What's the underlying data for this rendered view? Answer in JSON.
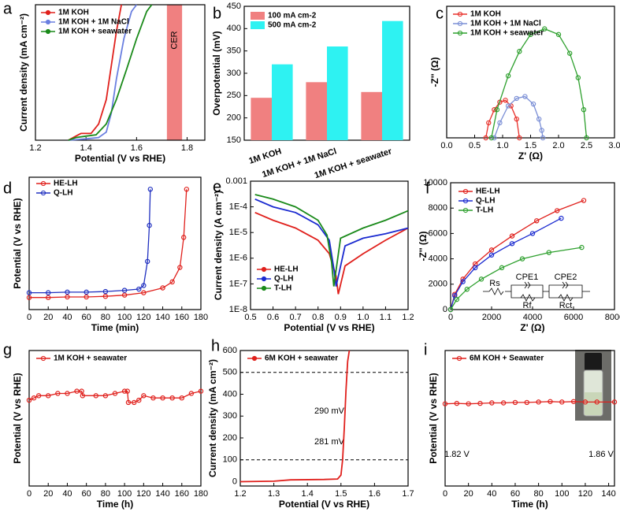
{
  "chart_data": [
    {
      "type": "line",
      "panel": "a",
      "xlabel": "Potential (V vs RHE)",
      "ylabel": "Current density (mA cm⁻²)",
      "xlim": [
        1.2,
        1.87
      ],
      "xticks": [
        1.2,
        1.4,
        1.6,
        1.8
      ],
      "ylim": [
        0,
        100
      ],
      "legend": "upper left",
      "shaded_region": {
        "x": [
          1.72,
          1.78
        ],
        "label": "CER",
        "color": "#f08080"
      },
      "series": [
        {
          "name": "1M KOH",
          "color": "#e0201c",
          "x": [
            1.33,
            1.36,
            1.38,
            1.42,
            1.45,
            1.48,
            1.5,
            1.52,
            1.54
          ],
          "values": [
            0,
            3,
            5,
            5,
            12,
            30,
            55,
            80,
            100
          ]
        },
        {
          "name": "1M KOH + 1M NaCl",
          "color": "#6a7fe0",
          "x": [
            1.33,
            1.4,
            1.45,
            1.48,
            1.5,
            1.52,
            1.55,
            1.58,
            1.6
          ],
          "values": [
            0,
            1,
            2,
            6,
            20,
            45,
            75,
            95,
            100
          ]
        },
        {
          "name": "1M KOH + seawater",
          "color": "#1a8a1a",
          "x": [
            1.33,
            1.36,
            1.4,
            1.44,
            1.48,
            1.52,
            1.56,
            1.6,
            1.64,
            1.66
          ],
          "values": [
            0,
            2,
            3,
            4,
            12,
            30,
            52,
            75,
            95,
            100
          ]
        }
      ]
    },
    {
      "type": "bar",
      "panel": "b",
      "ylabel": "Overpotential (mV)",
      "categories": [
        "1M KOH",
        "1M KOH + 1M NaCl",
        "1M KOH + seawater"
      ],
      "ylim": [
        150,
        450
      ],
      "yticks": [
        150,
        200,
        250,
        300,
        350,
        400,
        450
      ],
      "legend": "upper left",
      "series": [
        {
          "name": "100 mA cm-2",
          "color": "#f08080",
          "values": [
            245,
            280,
            258
          ]
        },
        {
          "name": "500 mA cm-2",
          "color": "#2ef2f2",
          "values": [
            320,
            360,
            417
          ]
        }
      ]
    },
    {
      "type": "line",
      "panel": "c",
      "xlabel": "Z' (Ω)",
      "ylabel": "-Z'' (Ω)",
      "markers": true,
      "xlim": [
        0,
        3.0
      ],
      "xticks": [
        {
          "value": 0,
          "label": "0.0"
        },
        0.5,
        {
          "value": 1,
          "label": "1.0"
        },
        1.5,
        {
          "value": 2,
          "label": "2.0"
        },
        2.5,
        {
          "value": 3,
          "label": "3.0"
        }
      ],
      "ylim": [
        0,
        0.7
      ],
      "legend": "upper left",
      "series": [
        {
          "name": "1M KOH",
          "color": "#e8302a",
          "x": [
            0.7,
            0.75,
            0.85,
            0.95,
            1.05,
            1.15,
            1.25,
            1.3
          ],
          "values": [
            0,
            0.08,
            0.15,
            0.19,
            0.2,
            0.17,
            0.1,
            0
          ]
        },
        {
          "name": "1M KOH + 1M NaCl",
          "color": "#7b8fd6",
          "x": [
            0.85,
            0.95,
            1.1,
            1.25,
            1.4,
            1.55,
            1.65,
            1.7,
            1.72
          ],
          "values": [
            0,
            0.08,
            0.17,
            0.21,
            0.22,
            0.18,
            0.1,
            0.04,
            0
          ]
        },
        {
          "name": "1M KOH + seawater",
          "color": "#2ea02e",
          "x": [
            0.8,
            0.9,
            1.1,
            1.3,
            1.5,
            1.75,
            2.0,
            2.2,
            2.35,
            2.45,
            2.5
          ],
          "values": [
            0,
            0.15,
            0.33,
            0.46,
            0.55,
            0.58,
            0.55,
            0.45,
            0.32,
            0.15,
            0
          ]
        }
      ]
    },
    {
      "type": "line",
      "panel": "d",
      "xlabel": "Time (min)",
      "ylabel": "Potential (V vs RHE)",
      "markers": true,
      "xlim": [
        0,
        180
      ],
      "xticks": [
        0,
        20,
        40,
        60,
        80,
        100,
        120,
        140,
        160,
        180
      ],
      "ylim": [
        1,
        12
      ],
      "legend": "upper left",
      "series": [
        {
          "name": "HE-LH",
          "color": "#e0201c",
          "x": [
            0,
            20,
            40,
            60,
            80,
            100,
            120,
            140,
            150,
            158,
            162,
            165
          ],
          "values": [
            2.0,
            2.0,
            2.05,
            2.05,
            2.1,
            2.2,
            2.4,
            2.8,
            3.3,
            4.5,
            7,
            11
          ]
        },
        {
          "name": "Q-LH",
          "color": "#2030c0",
          "x": [
            0,
            20,
            40,
            60,
            80,
            100,
            115,
            120,
            124,
            126,
            127
          ],
          "values": [
            2.4,
            2.4,
            2.45,
            2.45,
            2.5,
            2.6,
            2.7,
            3.0,
            5,
            8,
            11
          ]
        }
      ]
    },
    {
      "type": "line",
      "panel": "e",
      "xlabel": "Potential (V vs RHE)",
      "ylabel": "Current density (A cm⁻²)",
      "log_y": true,
      "xlim": [
        0.5,
        1.2
      ],
      "xticks": [
        0.5,
        0.6,
        0.7,
        0.8,
        0.9,
        {
          "value": 1,
          "label": "1.0"
        },
        1.1,
        1.2
      ],
      "ylim": [
        1e-08,
        0.001
      ],
      "yticks": [
        {
          "value": 1e-08,
          "label": "1E-8"
        },
        {
          "value": 1e-07,
          "label": "1E-7"
        },
        {
          "value": 1e-06,
          "label": "1E-6"
        },
        {
          "value": 1e-05,
          "label": "1E-5"
        },
        {
          "value": 0.0001,
          "label": "1E-4"
        },
        0.001
      ],
      "legend": "lower left",
      "series": [
        {
          "name": "HE-LH",
          "color": "#e0201c",
          "x": [
            0.52,
            0.6,
            0.7,
            0.8,
            0.85,
            0.88,
            0.89,
            0.92,
            1.0,
            1.1,
            1.2
          ],
          "values": [
            6e-05,
            3e-05,
            1.5e-05,
            5e-06,
            1.5e-06,
            2e-07,
            4e-08,
            5e-07,
            1.5e-06,
            5e-06,
            1.5e-05
          ]
        },
        {
          "name": "Q-LH",
          "color": "#1a2ad0",
          "x": [
            0.52,
            0.6,
            0.7,
            0.8,
            0.85,
            0.87,
            0.88,
            0.92,
            1.0,
            1.1,
            1.2
          ],
          "values": [
            0.0002,
            0.0001,
            6e-05,
            2e-05,
            5e-06,
            4e-07,
            8e-08,
            3e-06,
            6e-06,
            9e-06,
            1.5e-05
          ]
        },
        {
          "name": "T-LH",
          "color": "#1a8a1a",
          "x": [
            0.52,
            0.6,
            0.7,
            0.8,
            0.84,
            0.86,
            0.87,
            0.9,
            1.0,
            1.1,
            1.2
          ],
          "values": [
            0.0003,
            0.0002,
            0.0001,
            3e-05,
            8e-06,
            7e-07,
            8e-08,
            6e-06,
            1.5e-05,
            3e-05,
            7e-05
          ]
        }
      ]
    },
    {
      "type": "line",
      "panel": "f",
      "xlabel": "Z' (Ω)",
      "ylabel": "-Z'' (Ω)",
      "markers": true,
      "xlim": [
        0,
        8000
      ],
      "xticks": [
        0,
        2000,
        4000,
        6000,
        8000
      ],
      "ylim": [
        0,
        10000
      ],
      "yticks": [
        0,
        2000,
        4000,
        6000,
        8000,
        10000
      ],
      "legend": "upper left",
      "circuit_labels": [
        "Rs",
        "CPE1",
        "Rf",
        "CPE2",
        "Rct"
      ],
      "series": [
        {
          "name": "HE-LH",
          "color": "#e0201c",
          "x": [
            0,
            200,
            600,
            1200,
            2000,
            3000,
            4200,
            5200,
            6500
          ],
          "values": [
            0,
            1200,
            2400,
            3600,
            4700,
            5800,
            7000,
            7800,
            8600
          ]
        },
        {
          "name": "Q-LH",
          "color": "#1a2ad0",
          "x": [
            0,
            200,
            600,
            1200,
            2000,
            3000,
            4000,
            5400
          ],
          "values": [
            0,
            1100,
            2200,
            3300,
            4300,
            5200,
            6000,
            7200
          ]
        },
        {
          "name": "T-LH",
          "color": "#2ea02e",
          "x": [
            0,
            300,
            800,
            1500,
            2500,
            3500,
            4800,
            6400
          ],
          "values": [
            0,
            800,
            1600,
            2400,
            3300,
            4000,
            4500,
            4900
          ]
        }
      ]
    },
    {
      "type": "line",
      "panel": "g",
      "xlabel": "Time (h)",
      "ylabel": "Potential (V vs RHE)",
      "markers": true,
      "xlim": [
        0,
        180
      ],
      "xticks": [
        0,
        20,
        40,
        60,
        80,
        100,
        120,
        140,
        160,
        180
      ],
      "ylim": [
        0,
        3
      ],
      "legend": "upper left",
      "series": [
        {
          "name": "1M KOH + seawater",
          "color": "#e0201c",
          "x": [
            0,
            5,
            10,
            20,
            30,
            40,
            50,
            55,
            56,
            70,
            80,
            90,
            100,
            103,
            104,
            110,
            115,
            120,
            130,
            140,
            150,
            160,
            170,
            180
          ],
          "values": [
            1.9,
            1.95,
            2.0,
            2.0,
            2.05,
            2.05,
            2.1,
            2.1,
            2.0,
            2.0,
            2.0,
            2.05,
            2.1,
            2.1,
            1.85,
            1.85,
            1.9,
            2.0,
            1.95,
            1.95,
            1.95,
            1.95,
            2.05,
            2.1
          ]
        }
      ]
    },
    {
      "type": "line",
      "panel": "h",
      "xlabel": "Potential (V vs RHE)",
      "ylabel": "Current density (mA cm⁻²)",
      "xlim": [
        1.2,
        1.7
      ],
      "xticks": [
        1.2,
        1.3,
        1.4,
        1.5,
        1.6,
        1.7
      ],
      "ylim": [
        -20,
        600
      ],
      "yticks": [
        0,
        100,
        200,
        300,
        400,
        500,
        600
      ],
      "legend": "upper left",
      "hlines": [
        500,
        100
      ],
      "annotations": [
        "290 mV",
        "281 mV"
      ],
      "series": [
        {
          "name": "6M KOH + seawater",
          "color": "#e0201c",
          "x": [
            1.2,
            1.3,
            1.35,
            1.45,
            1.49,
            1.5,
            1.505,
            1.51,
            1.515,
            1.52,
            1.525
          ],
          "values": [
            0,
            2,
            8,
            10,
            12,
            30,
            100,
            250,
            420,
            550,
            600
          ]
        }
      ]
    },
    {
      "type": "line",
      "panel": "i",
      "xlabel": "Time (h)",
      "ylabel": "Potential (V vs RHE)",
      "markers": true,
      "xlim": [
        0,
        145
      ],
      "xticks": [
        0,
        20,
        40,
        60,
        80,
        100,
        120,
        140
      ],
      "ylim": [
        0,
        3
      ],
      "legend": "upper left",
      "annotations": [
        "1.82 V",
        "1.86 V"
      ],
      "series": [
        {
          "name": "6M KOH + Seawater",
          "color": "#e0201c",
          "x": [
            0,
            10,
            20,
            30,
            40,
            50,
            60,
            70,
            80,
            90,
            100,
            110,
            120,
            130,
            145
          ],
          "values": [
            1.82,
            1.83,
            1.82,
            1.83,
            1.84,
            1.84,
            1.85,
            1.85,
            1.86,
            1.87,
            1.86,
            1.87,
            1.86,
            1.86,
            1.86
          ]
        }
      ]
    }
  ]
}
